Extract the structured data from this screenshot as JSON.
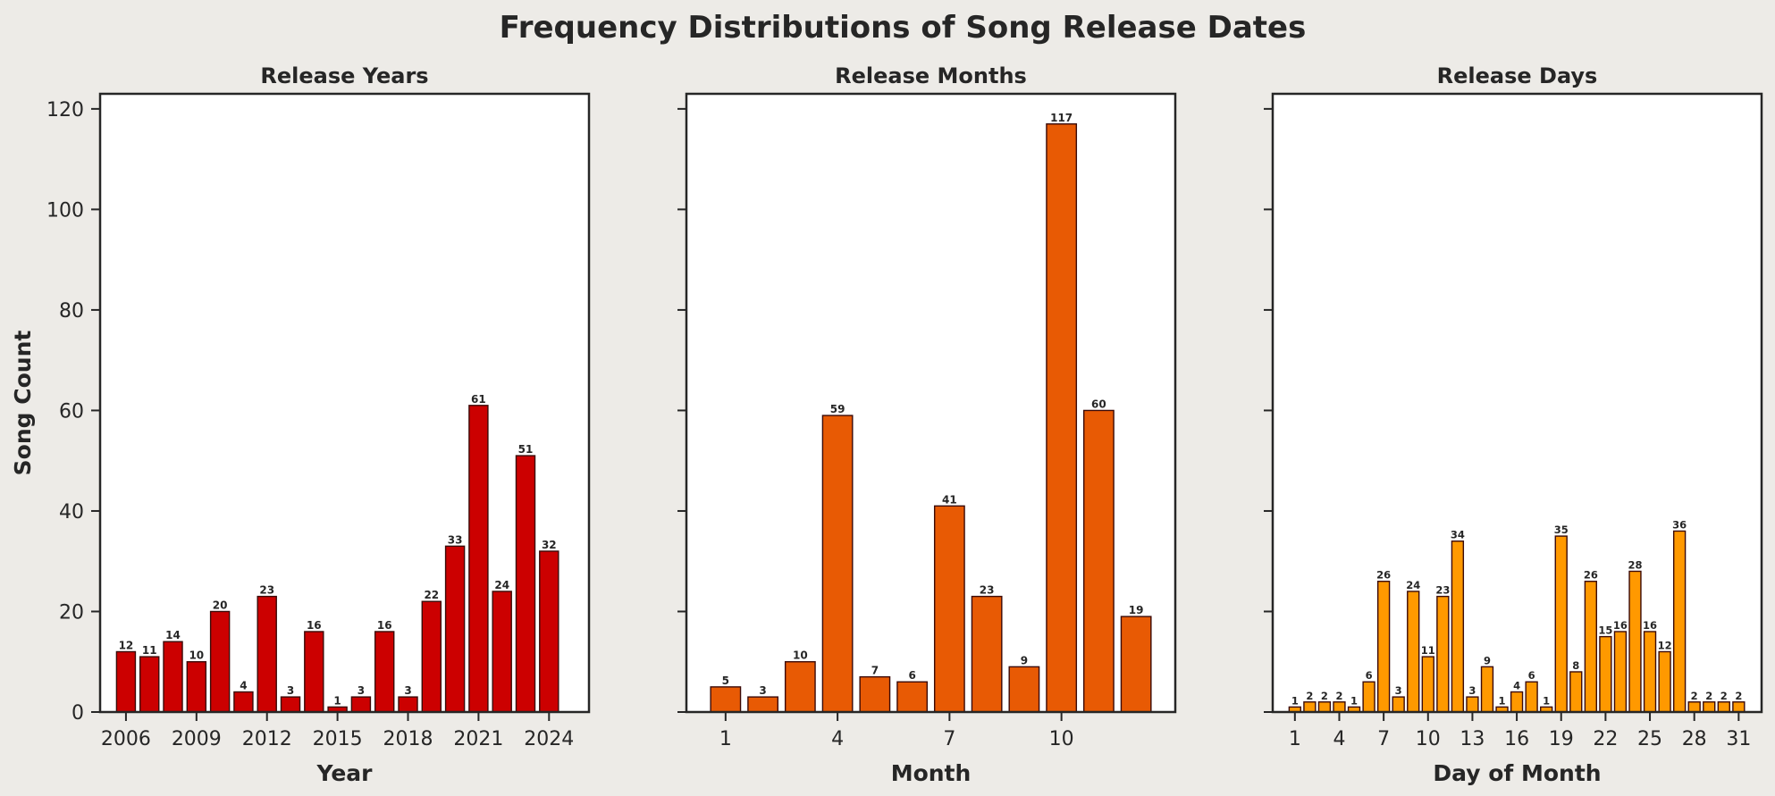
{
  "suptitle": "Frequency Distributions of Song Release Dates",
  "chart_data": [
    {
      "type": "bar",
      "title": "Release Years",
      "xlabel": "Year",
      "ylabel": "Song Count",
      "color": "#cc0000",
      "x": [
        2006,
        2007,
        2008,
        2009,
        2010,
        2011,
        2012,
        2013,
        2014,
        2015,
        2016,
        2017,
        2018,
        2019,
        2020,
        2021,
        2022,
        2023,
        2024
      ],
      "values": [
        12,
        11,
        14,
        10,
        20,
        4,
        23,
        3,
        16,
        1,
        3,
        16,
        3,
        22,
        33,
        61,
        24,
        51,
        32
      ],
      "xticks": [
        "2006",
        "2009",
        "2012",
        "2015",
        "2018",
        "2021",
        "2024"
      ],
      "xlim": [
        2004.9,
        2025.7
      ],
      "ylim": [
        0,
        123
      ],
      "yticks": [
        "0",
        "20",
        "40",
        "60",
        "80",
        "100",
        "120"
      ]
    },
    {
      "type": "bar",
      "title": "Release Months",
      "xlabel": "Month",
      "ylabel": "",
      "color": "#e85a04",
      "x": [
        1,
        2,
        3,
        4,
        5,
        6,
        7,
        8,
        9,
        10,
        11,
        12
      ],
      "values": [
        5,
        3,
        10,
        59,
        7,
        6,
        41,
        23,
        9,
        117,
        60,
        19
      ],
      "xticks": [
        "1",
        "4",
        "7",
        "10"
      ],
      "xlim": [
        -0.05,
        13.05
      ],
      "ylim": [
        0,
        123
      ],
      "yticks": []
    },
    {
      "type": "bar",
      "title": "Release Days",
      "xlabel": "Day of Month",
      "ylabel": "",
      "color": "#ff9900",
      "x": [
        1,
        2,
        3,
        4,
        5,
        6,
        7,
        8,
        9,
        10,
        11,
        12,
        13,
        14,
        15,
        16,
        17,
        18,
        19,
        20,
        21,
        22,
        23,
        24,
        25,
        26,
        27,
        28,
        29,
        30,
        31
      ],
      "values": [
        1,
        2,
        2,
        2,
        1,
        6,
        26,
        3,
        24,
        11,
        23,
        34,
        3,
        9,
        1,
        4,
        6,
        1,
        35,
        8,
        26,
        15,
        16,
        28,
        16,
        12,
        36,
        2,
        2,
        2,
        2
      ],
      "xticks": [
        "1",
        "4",
        "7",
        "10",
        "13",
        "16",
        "19",
        "22",
        "25",
        "28",
        "31"
      ],
      "xlim": [
        -0.5,
        32.55
      ],
      "ylim": [
        0,
        123
      ],
      "yticks": []
    }
  ]
}
